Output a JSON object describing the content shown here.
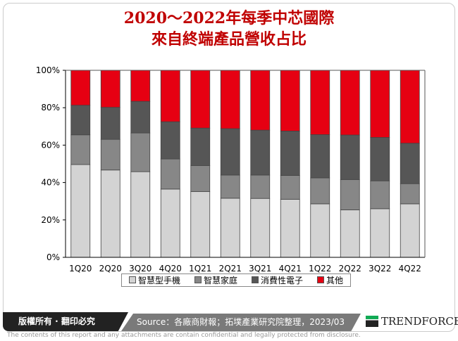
{
  "chart_data": {
    "type": "bar",
    "stacked": true,
    "title": "2020～2022年每季中芯國際\n來自終端產品營收占比",
    "title_lines": [
      "2020～2022年每季中芯國際",
      "來自終端產品營收占比"
    ],
    "categories": [
      "1Q20",
      "2Q20",
      "3Q20",
      "4Q20",
      "1Q21",
      "2Q21",
      "3Q21",
      "4Q21",
      "1Q22",
      "2Q22",
      "3Q22",
      "4Q22"
    ],
    "series": [
      {
        "name": "智慧型手機",
        "color": "#d3d3d3",
        "values": [
          49.6,
          46.7,
          45.8,
          36.5,
          35.2,
          31.6,
          31.5,
          31.0,
          28.6,
          25.4,
          26.0,
          28.6
        ]
      },
      {
        "name": "智慧家庭",
        "color": "#878787",
        "values": [
          15.9,
          16.4,
          20.7,
          16.1,
          13.9,
          12.4,
          12.5,
          12.8,
          13.9,
          16.2,
          14.9,
          10.8
        ]
      },
      {
        "name": "消費性電子",
        "color": "#565656",
        "values": [
          15.8,
          17.1,
          16.9,
          19.9,
          20.0,
          24.8,
          24.0,
          23.7,
          23.1,
          23.8,
          23.2,
          21.6
        ]
      },
      {
        "name": "其他",
        "color": "#e60012",
        "values": [
          18.7,
          19.8,
          16.6,
          27.5,
          30.9,
          31.2,
          32.0,
          32.5,
          34.4,
          34.6,
          35.9,
          39.0
        ]
      }
    ],
    "ylim": [
      0,
      100
    ],
    "yticks": [
      "0%",
      "20%",
      "40%",
      "60%",
      "80%",
      "100%"
    ],
    "legend": "bottom",
    "grid": false
  },
  "footer": {
    "copyright": "版權所有 · 翻印必究",
    "source": "Source：各廠商財報；拓墣產業研究院整理，2023/03",
    "logo": "TRENDFORCE",
    "disclaimer": "The contents of this report and any attachments are contain confidential and legally protected from disclosure."
  }
}
